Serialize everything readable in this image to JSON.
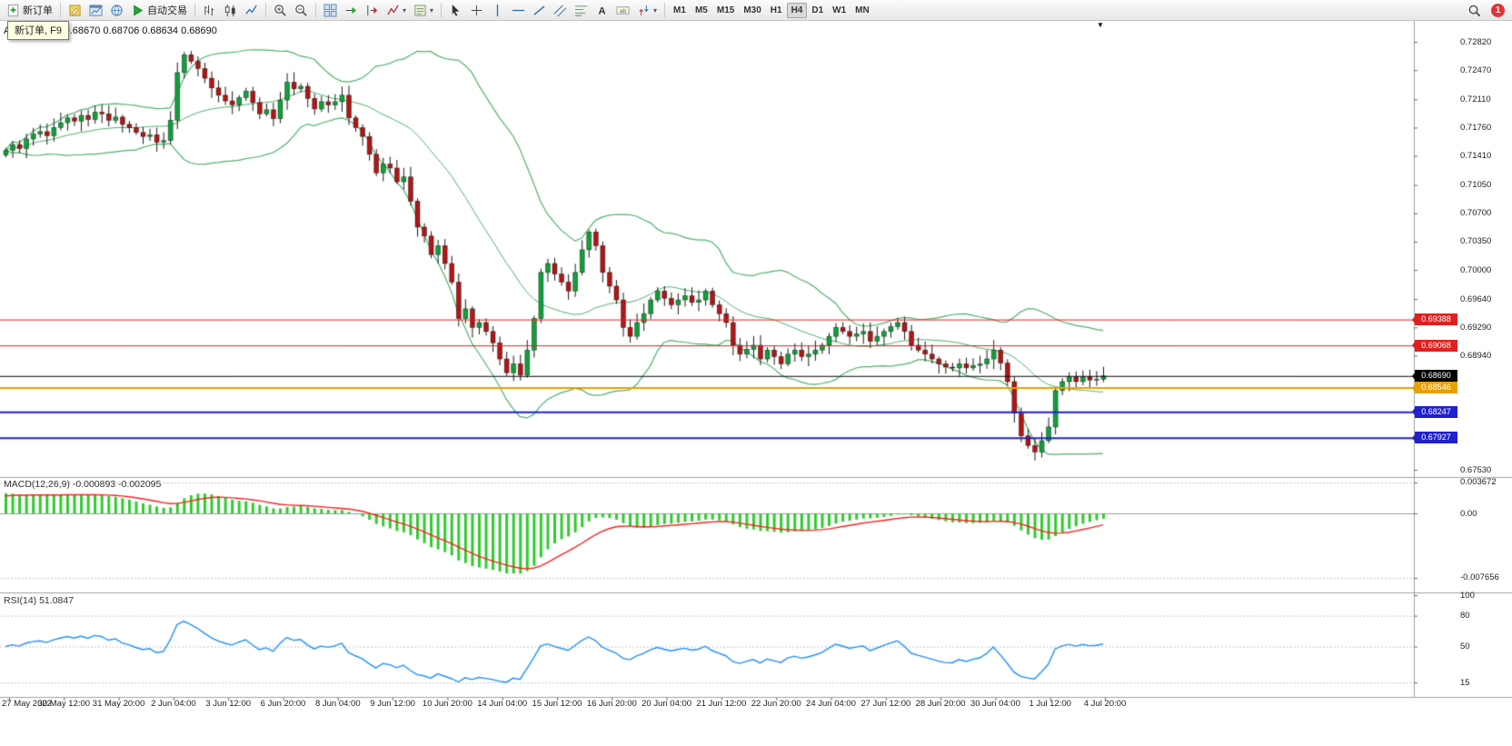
{
  "window": {
    "tooltip": "新订单, F9"
  },
  "toolbar": {
    "groups": [
      [
        {
          "name": "new-order-button",
          "icon": "new-order",
          "label": "新订单"
        }
      ],
      [
        {
          "name": "metaeditor-button",
          "icon": "pencil-doc"
        },
        {
          "name": "strategy-tester-button",
          "icon": "chart-window"
        },
        {
          "name": "community-button",
          "icon": "globe"
        },
        {
          "name": "autotrading-button",
          "icon": "play",
          "label": "自动交易"
        }
      ],
      [
        {
          "name": "bar-chart-button",
          "icon": "bars"
        },
        {
          "name": "candlestick-chart-button",
          "icon": "candles"
        },
        {
          "name": "line-chart-button",
          "icon": "line"
        }
      ],
      [
        {
          "name": "zoom-in-button",
          "icon": "zoom-in"
        },
        {
          "name": "zoom-out-button",
          "icon": "zoom-out"
        }
      ],
      [
        {
          "name": "tile-windows-button",
          "icon": "tiles"
        },
        {
          "name": "auto-scroll-button",
          "icon": "auto-scroll"
        },
        {
          "name": "chart-shift-button",
          "icon": "chart-shift"
        },
        {
          "name": "indicators-button",
          "icon": "indicator",
          "dropdown": true
        },
        {
          "name": "templates-button",
          "icon": "template",
          "dropdown": true
        }
      ],
      [
        {
          "name": "cursor-button",
          "icon": "cursor"
        },
        {
          "name": "crosshair-button",
          "icon": "crosshair"
        },
        {
          "name": "vertical-line-button",
          "icon": "vline"
        },
        {
          "name": "horizontal-line-button",
          "icon": "hline"
        },
        {
          "name": "trendline-button",
          "icon": "trend"
        },
        {
          "name": "channel-button",
          "icon": "channel"
        },
        {
          "name": "fibonacci-button",
          "icon": "fibo"
        },
        {
          "name": "text-button",
          "icon": "text"
        },
        {
          "name": "text-label-button",
          "icon": "label"
        },
        {
          "name": "arrows-button",
          "icon": "arrows",
          "dropdown": true
        }
      ]
    ],
    "timeframes": [
      "M1",
      "M5",
      "M15",
      "M30",
      "H1",
      "H4",
      "D1",
      "W1",
      "MN"
    ],
    "active_timeframe": "H4",
    "notification_count": "1"
  },
  "chart": {
    "symbol_label": "AUDUSD,H4 0.68670 0.68706 0.68634 0.68690"
  },
  "indicators": {
    "macd": {
      "text": "MACD(12,26,9) -0.000893 -0.002095"
    },
    "rsi": {
      "text": "RSI(14) 51.0847"
    }
  },
  "chart_data": {
    "type": "candlestick",
    "symbol": "AUDUSD",
    "timeframe": "H4",
    "ylim": [
      0.67452,
      0.73
    ],
    "price_axis_ticks": [
      "0.72820",
      "0.72470",
      "0.72110",
      "0.71760",
      "0.71410",
      "0.71050",
      "0.70700",
      "0.70350",
      "0.70000",
      "0.69640",
      "0.69290",
      "0.68940",
      "0.67530"
    ],
    "x_labels": [
      "27 May 2022",
      "30 May 12:00",
      "31 May 20:00",
      "2 Jun 04:00",
      "3 Jun 12:00",
      "6 Jun 20:00",
      "8 Jun 04:00",
      "9 Jun 12:00",
      "10 Jun 20:00",
      "14 Jun 04:00",
      "15 Jun 12:00",
      "16 Jun 20:00",
      "20 Jun 04:00",
      "21 Jun 12:00",
      "22 Jun 20:00",
      "24 Jun 04:00",
      "27 Jun 12:00",
      "28 Jun 20:00",
      "30 Jun 04:00",
      "1 Jul 12:00",
      "4 Jul 20:00"
    ],
    "first_open": 0.7142,
    "closes": [
      0.7148,
      0.7155,
      0.715,
      0.7162,
      0.7168,
      0.7171,
      0.7166,
      0.7176,
      0.7182,
      0.7188,
      0.7184,
      0.7191,
      0.7186,
      0.7195,
      0.7193,
      0.7185,
      0.7189,
      0.718,
      0.7176,
      0.717,
      0.7165,
      0.7167,
      0.7158,
      0.716,
      0.7185,
      0.7244,
      0.7266,
      0.7258,
      0.7249,
      0.7237,
      0.7225,
      0.7216,
      0.7209,
      0.7204,
      0.7213,
      0.7221,
      0.7207,
      0.7193,
      0.7198,
      0.7187,
      0.721,
      0.7232,
      0.7224,
      0.7227,
      0.7212,
      0.7199,
      0.7208,
      0.7204,
      0.7208,
      0.7216,
      0.7188,
      0.7176,
      0.7165,
      0.7143,
      0.712,
      0.7131,
      0.7126,
      0.7109,
      0.7115,
      0.7085,
      0.7053,
      0.7042,
      0.7019,
      0.703,
      0.7008,
      0.6985,
      0.694,
      0.6952,
      0.6929,
      0.6935,
      0.6924,
      0.691,
      0.689,
      0.6873,
      0.6884,
      0.687,
      0.6901,
      0.694,
      0.6997,
      0.7008,
      0.6995,
      0.6985,
      0.6974,
      0.6997,
      0.7025,
      0.7047,
      0.703,
      0.6997,
      0.698,
      0.6963,
      0.6929,
      0.6918,
      0.6935,
      0.6946,
      0.6963,
      0.6974,
      0.6965,
      0.6957,
      0.6963,
      0.6968,
      0.696,
      0.6963,
      0.6974,
      0.6957,
      0.6946,
      0.6935,
      0.6907,
      0.6896,
      0.6902,
      0.6907,
      0.689,
      0.6901,
      0.6893,
      0.6884,
      0.6896,
      0.6901,
      0.6893,
      0.6896,
      0.6901,
      0.6907,
      0.6918,
      0.6929,
      0.6924,
      0.6918,
      0.6921,
      0.6924,
      0.6912,
      0.6918,
      0.6924,
      0.693,
      0.6935,
      0.6924,
      0.6907,
      0.6901,
      0.6896,
      0.689,
      0.6884,
      0.688,
      0.6879,
      0.6884,
      0.6879,
      0.6882,
      0.6884,
      0.689,
      0.6901,
      0.6885,
      0.6862,
      0.6823,
      0.6795,
      0.6783,
      0.6775,
      0.6789,
      0.6806,
      0.6851,
      0.6862,
      0.6868,
      0.6862,
      0.6868,
      0.6864,
      0.6865,
      0.6869
    ],
    "hlines": [
      {
        "price": 0.69388,
        "label": "0.69388",
        "color": "#e02020",
        "width": 1
      },
      {
        "price": 0.69068,
        "label": "0.69068",
        "color": "#e02020",
        "width": 1
      },
      {
        "price": 0.6869,
        "label": "0.68690",
        "color": "#000000",
        "width": 1
      },
      {
        "price": 0.68546,
        "label": "0.68546",
        "color": "#e8a000",
        "width": 2
      },
      {
        "price": 0.68247,
        "label": "0.68247",
        "color": "#2020cc",
        "width": 2
      },
      {
        "price": 0.67927,
        "label": "0.67927",
        "color": "#2020cc",
        "width": 2
      }
    ],
    "overlays": [
      {
        "name": "bollinger_bands",
        "period": 20,
        "deviation": 2,
        "color": "#4db36a"
      }
    ],
    "panels": [
      {
        "type": "macd",
        "fast": 12,
        "slow": 26,
        "signal_period": 9,
        "axis_ticks": [
          "0.003672",
          "0.00",
          "-0.007656"
        ],
        "hist_color": "#2ecc2e",
        "signal_color": "#ff2020"
      },
      {
        "type": "rsi",
        "period": 14,
        "axis_ticks": [
          "100",
          "80",
          "50",
          "15"
        ],
        "levels": [
          80,
          50,
          15
        ],
        "line_color": "#2090ff"
      }
    ],
    "colors": {
      "up": "#0fa03a",
      "down": "#b01616",
      "wick": "#1a1a1a"
    }
  }
}
